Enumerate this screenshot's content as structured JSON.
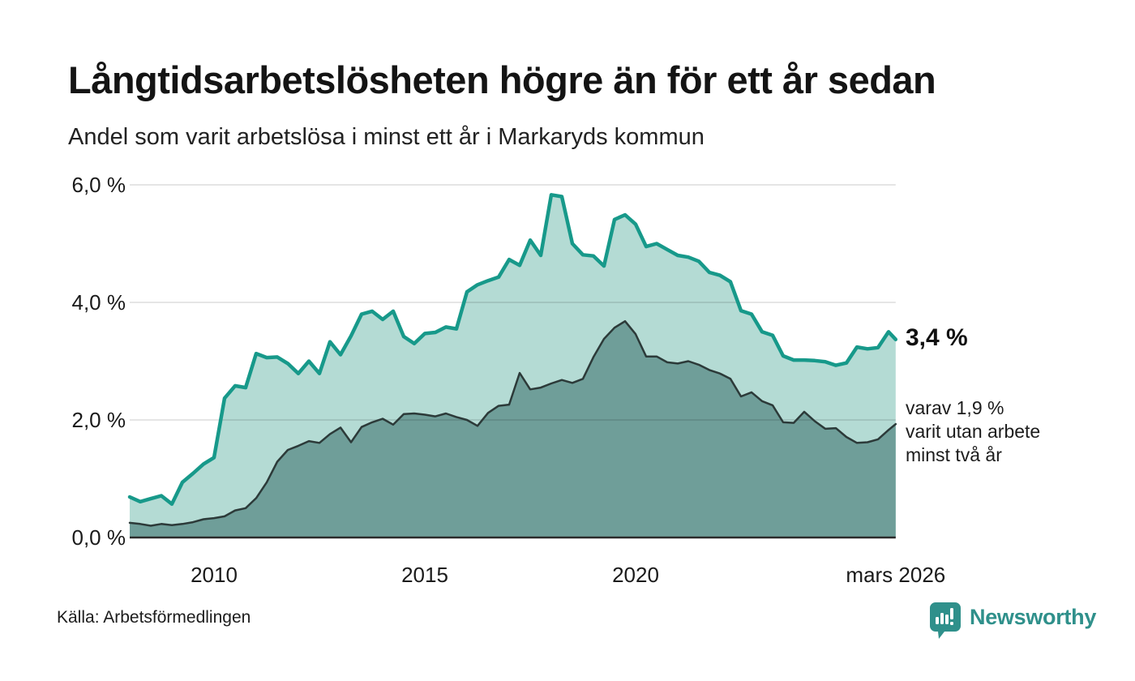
{
  "title": "Långtidsarbetslösheten högre än för ett år sedan",
  "subtitle": "Andel som varit arbetslösa i minst ett år i Markaryds kommun",
  "source": "Källa: Arbetsförmedlingen",
  "branding": {
    "name": "Newsworthy",
    "color": "#2f908b"
  },
  "annotations": {
    "latest_total": "3,4 %",
    "sub_line1": "varav 1,9 %",
    "sub_line2": "varit utan arbete",
    "sub_line3": "minst två år"
  },
  "chart_data": {
    "type": "area",
    "title": "Långtidsarbetslösheten högre än för ett år sedan",
    "subtitle": "Andel som varit arbetslösa i minst ett år i Markaryds kommun",
    "x_unit": "year (decimal, monthly series shown quarterly)",
    "y_unit": "percent",
    "ylim": [
      0,
      6.4
    ],
    "xlim": [
      2008.0,
      2026.17
    ],
    "grid": "horizontal",
    "legend": "none",
    "yticks": [
      {
        "value": 0,
        "label": "0,0 %"
      },
      {
        "value": 2,
        "label": "2,0 %"
      },
      {
        "value": 4,
        "label": "4,0 %"
      },
      {
        "value": 6,
        "label": "6,0 %"
      }
    ],
    "xticks": [
      {
        "value": 2010,
        "label": "2010"
      },
      {
        "value": 2015,
        "label": "2015"
      },
      {
        "value": 2020,
        "label": "2020"
      },
      {
        "value": 2026.17,
        "label": "mars 2026"
      }
    ],
    "x": [
      2008.0,
      2008.25,
      2008.5,
      2008.75,
      2009.0,
      2009.25,
      2009.5,
      2009.75,
      2010.0,
      2010.25,
      2010.5,
      2010.75,
      2011.0,
      2011.25,
      2011.5,
      2011.75,
      2012.0,
      2012.25,
      2012.5,
      2012.75,
      2013.0,
      2013.25,
      2013.5,
      2013.75,
      2014.0,
      2014.25,
      2014.5,
      2014.75,
      2015.0,
      2015.25,
      2015.5,
      2015.75,
      2016.0,
      2016.25,
      2016.5,
      2016.75,
      2017.0,
      2017.25,
      2017.5,
      2017.75,
      2018.0,
      2018.25,
      2018.5,
      2018.75,
      2019.0,
      2019.25,
      2019.5,
      2019.75,
      2020.0,
      2020.25,
      2020.5,
      2020.75,
      2021.0,
      2021.25,
      2021.5,
      2021.75,
      2022.0,
      2022.25,
      2022.5,
      2022.75,
      2023.0,
      2023.25,
      2023.5,
      2023.75,
      2024.0,
      2024.25,
      2024.5,
      2024.75,
      2025.0,
      2025.25,
      2025.5,
      2025.75,
      2026.0,
      2026.17
    ],
    "series": [
      {
        "name": "Andel arbetslösa minst ett år",
        "line_color": "#17998a",
        "fill_color": "#b4dbd4",
        "line_width": 4.5,
        "latest_label": "3,4 %",
        "values": [
          0.69,
          0.61,
          0.66,
          0.71,
          0.57,
          0.94,
          1.09,
          1.25,
          1.36,
          2.37,
          2.58,
          2.55,
          3.13,
          3.06,
          3.07,
          2.96,
          2.79,
          3.0,
          2.79,
          3.33,
          3.11,
          3.43,
          3.8,
          3.85,
          3.71,
          3.85,
          3.42,
          3.3,
          3.47,
          3.49,
          3.58,
          3.55,
          4.18,
          4.3,
          4.37,
          4.43,
          4.73,
          4.63,
          5.06,
          4.8,
          5.83,
          5.8,
          5.0,
          4.81,
          4.79,
          4.62,
          5.41,
          5.49,
          5.33,
          4.95,
          5.0,
          4.9,
          4.8,
          4.77,
          4.7,
          4.51,
          4.46,
          4.35,
          3.86,
          3.8,
          3.5,
          3.44,
          3.09,
          3.02,
          3.02,
          3.01,
          2.99,
          2.93,
          2.97,
          3.24,
          3.21,
          3.23,
          3.5,
          3.37
        ]
      },
      {
        "name": "varav arbetslösa minst två år",
        "line_color": "#2c3a39",
        "fill_color": "#6f9e99",
        "line_width": 2.5,
        "latest_label": "varav 1,9 % varit utan arbete minst två år",
        "values": [
          0.25,
          0.23,
          0.2,
          0.23,
          0.21,
          0.23,
          0.26,
          0.31,
          0.33,
          0.36,
          0.46,
          0.5,
          0.67,
          0.94,
          1.29,
          1.49,
          1.56,
          1.64,
          1.61,
          1.76,
          1.87,
          1.62,
          1.88,
          1.96,
          2.02,
          1.92,
          2.1,
          2.11,
          2.09,
          2.06,
          2.11,
          2.05,
          2.0,
          1.9,
          2.12,
          2.24,
          2.26,
          2.8,
          2.52,
          2.55,
          2.62,
          2.68,
          2.63,
          2.7,
          3.07,
          3.38,
          3.57,
          3.68,
          3.46,
          3.08,
          3.08,
          2.98,
          2.96,
          3.0,
          2.94,
          2.85,
          2.79,
          2.7,
          2.4,
          2.47,
          2.32,
          2.25,
          1.96,
          1.95,
          2.14,
          1.98,
          1.85,
          1.86,
          1.71,
          1.61,
          1.62,
          1.67,
          1.83,
          1.93
        ]
      }
    ],
    "gridline_color": "#e3e3e3",
    "axis_color": "#2b2b2b"
  }
}
